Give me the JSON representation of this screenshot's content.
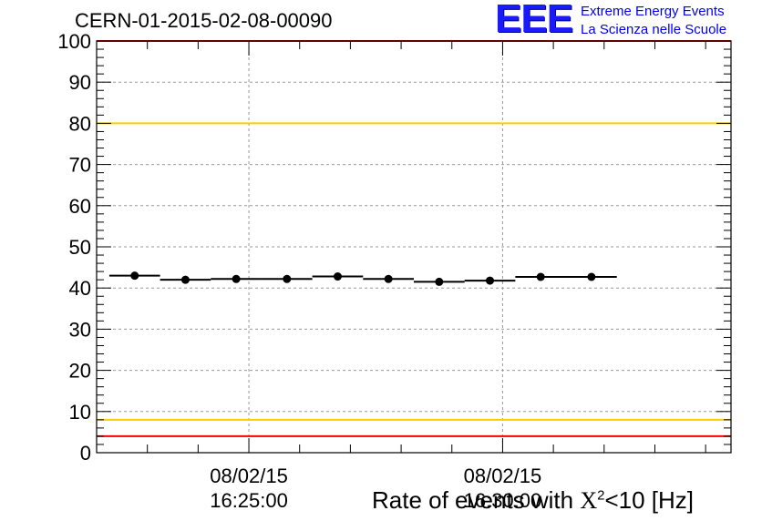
{
  "header": {
    "run_title": "CERN-01-2015-02-08-00090",
    "logo_mark": "EEE",
    "logo_line1": "Extreme Energy Events",
    "logo_line2": "La Scienza nelle Scuole"
  },
  "caption": {
    "prefix": "Rate of events with ",
    "chi": "X",
    "power": "2",
    "suffix": "<10 [Hz]"
  },
  "colors": {
    "red_limit": "#ff0000",
    "yellow_limit": "#ffcc00",
    "grid": "#999999",
    "marker": "#000000"
  },
  "chart_data": {
    "type": "scatter",
    "title": "",
    "xlabel": "",
    "ylabel": "",
    "ylim": [
      0,
      100
    ],
    "yticks": [
      0,
      10,
      20,
      30,
      40,
      50,
      60,
      70,
      80,
      90,
      100
    ],
    "xlim": [
      "08/02/15 16:22:00",
      "08/02/15 16:34:30"
    ],
    "x_tick_labels": [
      {
        "date": "08/02/15",
        "time": "16:25:00"
      },
      {
        "date": "08/02/15",
        "time": "16:30:00"
      }
    ],
    "grid": true,
    "series": [
      {
        "x": [
          "16:22:45",
          "16:23:45",
          "16:24:45",
          "16:25:45",
          "16:26:45",
          "16:27:45",
          "16:28:45",
          "16:29:45",
          "16:30:45",
          "16:31:45"
        ],
        "y": [
          43.0,
          42.0,
          42.2,
          42.2,
          42.8,
          42.2,
          41.5,
          41.8,
          42.7,
          42.7
        ],
        "bin_width_seconds": 60
      }
    ],
    "limit_lines": [
      {
        "color": "red",
        "y": 100
      },
      {
        "color": "yellow",
        "y": 80
      },
      {
        "color": "yellow",
        "y": 8
      },
      {
        "color": "red",
        "y": 4
      }
    ]
  }
}
